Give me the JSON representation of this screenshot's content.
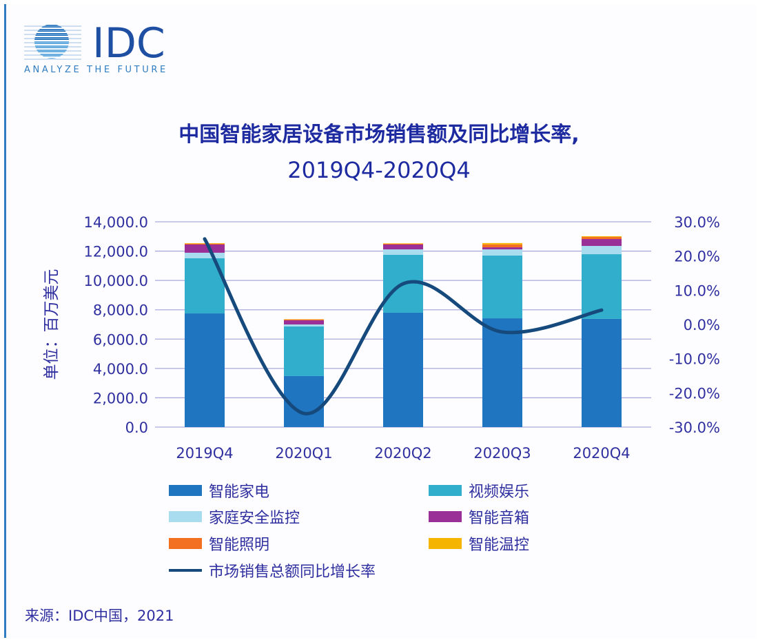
{
  "logo": {
    "text": "IDC",
    "tagline": "ANALYZE THE FUTURE"
  },
  "title_line1": "中国智能家居设备市场销售额及同比增长率,",
  "title_line2": "2019Q4-2020Q4",
  "source": "来源：IDC中国，2021",
  "colors": {
    "appliance": "#1f75bf",
    "video": "#30aecb",
    "security": "#a9dcef",
    "speaker": "#9a2f98",
    "lighting": "#f36f22",
    "thermostat": "#f4b400",
    "line": "#164a7c",
    "text": "#2f2fa0",
    "grid": "#a9a9dc"
  },
  "chart_data": {
    "type": "bar",
    "stacked": true,
    "title": "中国智能家居设备市场销售额及同比增长率, 2019Q4-2020Q4",
    "ylabel": "单位：百万美元",
    "categories": [
      "2019Q4",
      "2020Q1",
      "2020Q2",
      "2020Q3",
      "2020Q4"
    ],
    "ylim": [
      0,
      14000
    ],
    "yticks": [
      "0.0",
      "2,000.0",
      "4,000.0",
      "6,000.0",
      "8,000.0",
      "10,000.0",
      "12,000.0",
      "14,000.0"
    ],
    "y2lim": [
      -30,
      30
    ],
    "y2ticks": [
      "-30.0%",
      "-20.0%",
      "-10.0%",
      "0.0%",
      "10.0%",
      "20.0%",
      "30.0%"
    ],
    "grid": true,
    "legend_position": "bottom",
    "series": [
      {
        "name": "智能家电",
        "values": [
          7750,
          3480,
          7800,
          7420,
          7380
        ]
      },
      {
        "name": "视频娱乐",
        "values": [
          3760,
          3380,
          3945,
          4280,
          4410
        ]
      },
      {
        "name": "家庭安全监控",
        "values": [
          380,
          140,
          375,
          420,
          565
        ]
      },
      {
        "name": "智能音箱",
        "values": [
          560,
          280,
          330,
          140,
          470
        ]
      },
      {
        "name": "智能照明",
        "values": [
          60,
          60,
          50,
          200,
          140
        ]
      },
      {
        "name": "智能温控",
        "values": [
          30,
          20,
          30,
          90,
          50
        ]
      }
    ],
    "line_series": {
      "name": "市场销售总额同比增长率",
      "axis": "right",
      "values": [
        25.0,
        -26.0,
        11.9,
        -2.2,
        4.2
      ]
    }
  }
}
